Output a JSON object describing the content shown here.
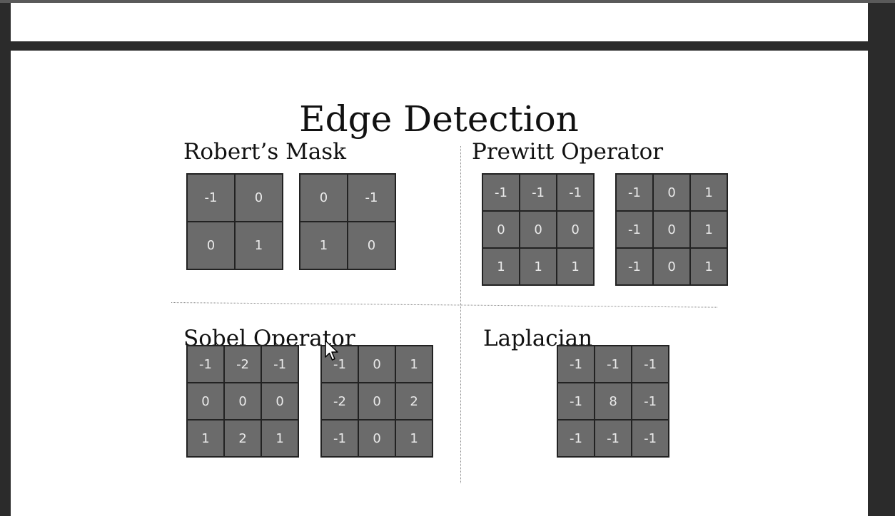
{
  "title": "Edge Detection",
  "sections": {
    "roberts": {
      "heading": "Robert’s Mask",
      "masks": [
        [
          [
            "-1",
            "0"
          ],
          [
            "0",
            "1"
          ]
        ],
        [
          [
            "0",
            "-1"
          ],
          [
            "1",
            "0"
          ]
        ]
      ]
    },
    "prewitt": {
      "heading": "Prewitt Operator",
      "masks": [
        [
          [
            "-1",
            "-1",
            "-1"
          ],
          [
            "0",
            "0",
            "0"
          ],
          [
            "1",
            "1",
            "1"
          ]
        ],
        [
          [
            "-1",
            "0",
            "1"
          ],
          [
            "-1",
            "0",
            "1"
          ],
          [
            "-1",
            "0",
            "1"
          ]
        ]
      ]
    },
    "sobel": {
      "heading": "Sobel Operator",
      "masks": [
        [
          [
            "-1",
            "-2",
            "-1"
          ],
          [
            "0",
            "0",
            "0"
          ],
          [
            "1",
            "2",
            "1"
          ]
        ],
        [
          [
            "-1",
            "0",
            "1"
          ],
          [
            "-2",
            "0",
            "2"
          ],
          [
            "-1",
            "0",
            "1"
          ]
        ]
      ]
    },
    "laplacian": {
      "heading": "Laplacian",
      "masks": [
        [
          [
            "-1",
            "-1",
            "-1"
          ],
          [
            "-1",
            "8",
            "-1"
          ],
          [
            "-1",
            "-1",
            "-1"
          ]
        ]
      ]
    }
  }
}
